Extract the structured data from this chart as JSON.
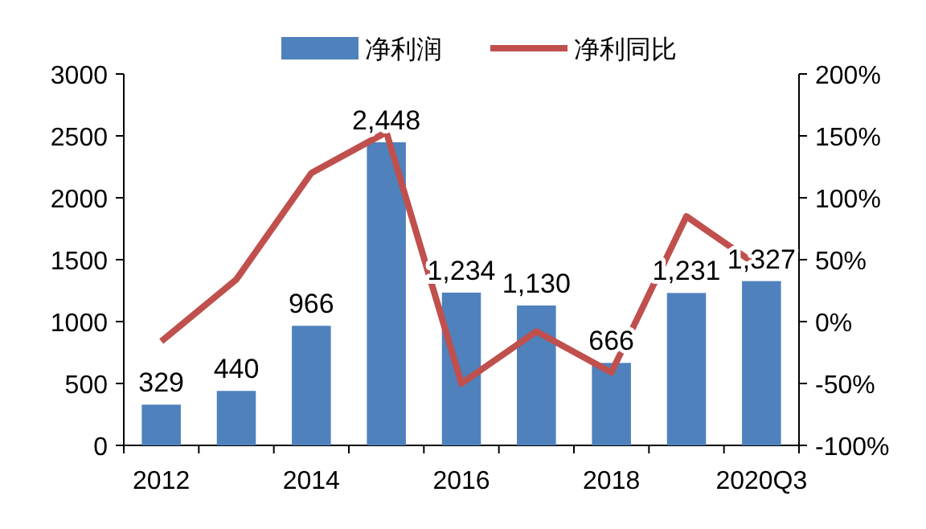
{
  "chart_data": {
    "type": "bar",
    "categories": [
      "2012",
      null,
      "2014",
      null,
      "2016",
      null,
      "2018",
      null,
      "2020Q3"
    ],
    "series": [
      {
        "name": "净利润",
        "color": "#4f81bd",
        "values": [
          329,
          440,
          966,
          2448,
          1234,
          1130,
          666,
          1231,
          1327
        ],
        "value_labels": [
          "329",
          "440",
          "966",
          "2,448",
          "1,234",
          "1,130",
          "666",
          "1,231",
          "1,327"
        ]
      },
      {
        "name": "净利同比",
        "type": "line",
        "axis": "y2",
        "color": "#c0504d",
        "values": [
          -16,
          34,
          120,
          153,
          -50,
          -8,
          -41,
          85,
          43
        ]
      }
    ],
    "ylim": [
      0,
      3000
    ],
    "yticks": [
      0,
      500,
      1000,
      1500,
      2000,
      2500,
      3000
    ],
    "y2lim": [
      -100,
      200
    ],
    "y2ticks": [
      {
        "value": -100,
        "label": "-100%"
      },
      {
        "value": -50,
        "label": "-50%"
      },
      {
        "value": 0,
        "label": "0%"
      },
      {
        "value": 50,
        "label": "50%"
      },
      {
        "value": 100,
        "label": "100%"
      },
      {
        "value": 150,
        "label": "150%"
      },
      {
        "value": 200,
        "label": "200%"
      }
    ],
    "legend": "top",
    "grid": false,
    "marker": "none"
  }
}
